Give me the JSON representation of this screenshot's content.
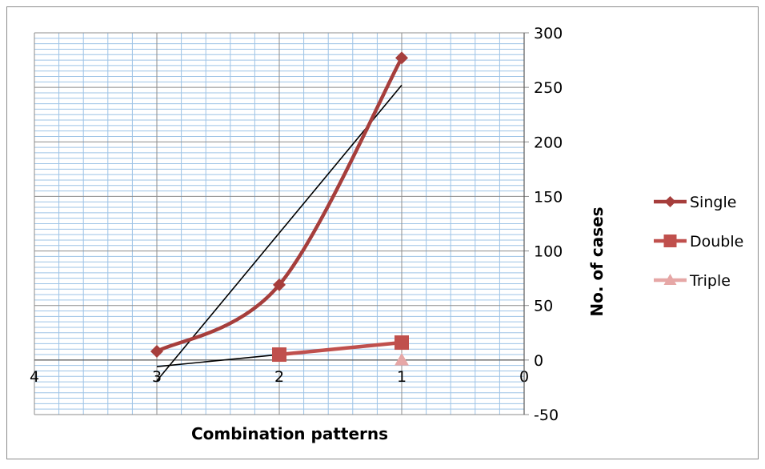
{
  "chart_data": {
    "type": "line",
    "xlabel": "Combination patterns",
    "ylabel": "No. of cases",
    "x_axis": {
      "min": 0,
      "max": 4,
      "reversed": true,
      "ticks": [
        4,
        3,
        2,
        1,
        0
      ]
    },
    "y_axis": {
      "min": -50,
      "max": 300,
      "position": "right",
      "ticks": [
        300,
        250,
        200,
        150,
        100,
        50,
        0,
        -50
      ]
    },
    "grid": true,
    "legend": "right",
    "series": [
      {
        "name": "Single",
        "marker": "diamond",
        "color": "#a63e3c",
        "smooth": true,
        "points": [
          {
            "x": 3,
            "y": 8
          },
          {
            "x": 2,
            "y": 69
          },
          {
            "x": 1,
            "y": 277
          }
        ]
      },
      {
        "name": "Double",
        "marker": "square",
        "color": "#c0504d",
        "smooth": false,
        "points": [
          {
            "x": 2,
            "y": 5
          },
          {
            "x": 1,
            "y": 16
          }
        ]
      },
      {
        "name": "Triple",
        "marker": "triangle",
        "color": "#e6a7a6",
        "smooth": false,
        "points": [
          {
            "x": 1,
            "y": 0
          }
        ]
      }
    ],
    "trendlines": [
      {
        "color": "#000000",
        "points": [
          {
            "x": 3,
            "y": -19
          },
          {
            "x": 1,
            "y": 252
          }
        ]
      },
      {
        "color": "#000000",
        "points": [
          {
            "x": 3,
            "y": -6
          },
          {
            "x": 1,
            "y": 16
          }
        ]
      }
    ]
  }
}
